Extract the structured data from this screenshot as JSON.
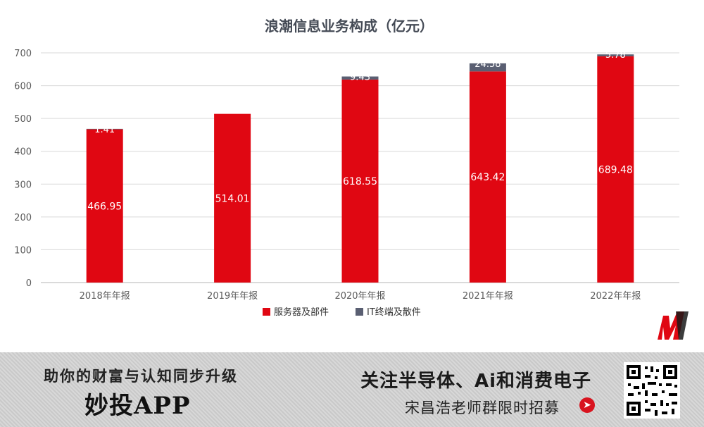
{
  "chart_data": {
    "type": "bar",
    "stacked": true,
    "title": "浪潮信息业务构成（亿元）",
    "categories": [
      "2018年年报",
      "2019年年报",
      "2020年年报",
      "2021年年报",
      "2022年年报"
    ],
    "series": [
      {
        "name": "服务器及部件",
        "values": [
          466.95,
          514.01,
          618.55,
          643.42,
          689.48
        ],
        "color": "#e00712",
        "labels": [
          "466.95",
          "514.01",
          "618.55",
          "643.42",
          "689.48"
        ]
      },
      {
        "name": "IT终端及散件",
        "values": [
          1.41,
          0,
          9.43,
          24.58,
          5.78
        ],
        "color": "#5a5f72",
        "labels": [
          "1.41",
          "",
          "9.43",
          "24.58",
          "5.78"
        ]
      }
    ],
    "yticks": [
      "0",
      "100",
      "200",
      "300",
      "400",
      "500",
      "600",
      "700"
    ],
    "ylim": [
      0,
      700
    ],
    "grid": true,
    "legend": "bottom"
  },
  "footer": {
    "slogan": "助你的财富与认知同步升级",
    "app_name": "妙投APP",
    "follow_text": "关注半导体、Ai和消费电子",
    "recruit_text": "宋昌浩老师群限时招募",
    "arrow_icon": "right-arrow-circle-icon",
    "qr_icon": "qr-code-icon",
    "logo_icon": "miaotou-logo-icon"
  }
}
